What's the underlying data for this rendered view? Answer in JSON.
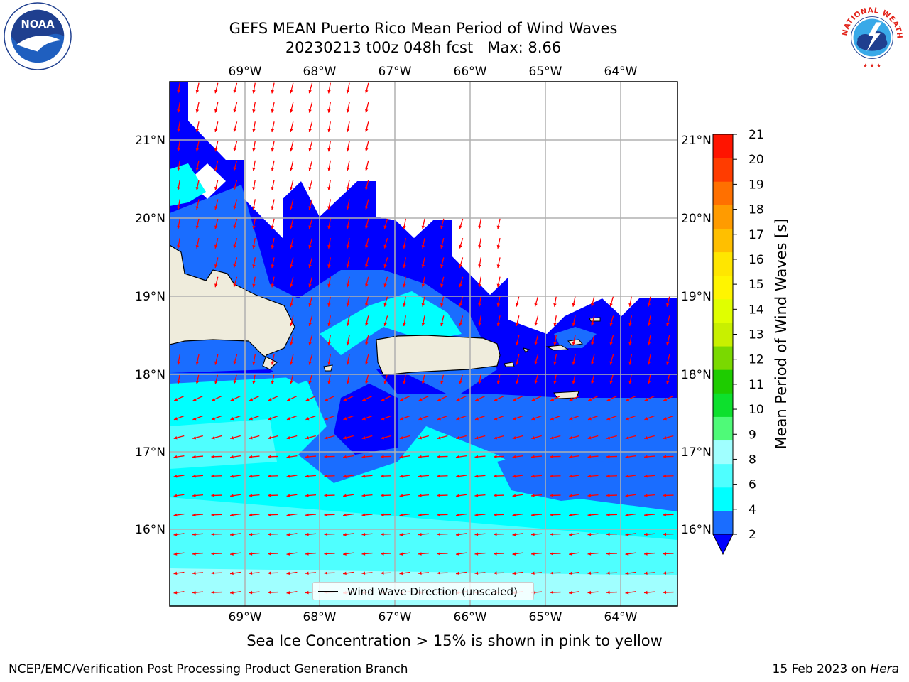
{
  "title": {
    "line1": "GEFS MEAN Puerto Rico Mean Period of Wind Waves",
    "line2": "20230213 t00z 048h fcst",
    "max_label": "Max: 8.66"
  },
  "logos": {
    "left": "noaa-logo",
    "left_text": "NOAA",
    "right": "national-weather-service-logo",
    "right_text": "NATIONAL WEATHER SERVICE"
  },
  "map": {
    "lon_ticks": [
      "69°W",
      "68°W",
      "67°W",
      "66°W",
      "65°W",
      "64°W"
    ],
    "lat_ticks": [
      "21°N",
      "20°N",
      "19°N",
      "18°N",
      "17°N",
      "16°N"
    ],
    "legend_label": "Wind Wave Direction (unscaled)",
    "land_color": "#efecdc",
    "arrow_color": "#ff0000"
  },
  "colorbar": {
    "label": "Mean Period of Wind Waves [s]",
    "ticks": [
      "2",
      "4",
      "6",
      "8",
      "9",
      "10",
      "11",
      "12",
      "13",
      "14",
      "15",
      "16",
      "17",
      "18",
      "19",
      "20",
      "21"
    ],
    "colors": [
      "#1a6dff",
      "#00ffff",
      "#4fffff",
      "#a0ffff",
      "#4ffa78",
      "#0de02d",
      "#1ecc00",
      "#7ad900",
      "#c8f000",
      "#e0ff00",
      "#fff500",
      "#ffe600",
      "#ffbf00",
      "#ff9b00",
      "#ff7000",
      "#ff3c00",
      "#ff1400"
    ],
    "under_color": "#0000ff"
  },
  "notes": {
    "sea_ice": "Sea Ice Concentration > 15% is shown in pink to yellow"
  },
  "footer": {
    "left": "NCEP/EMC/Verification Post Processing Product Generation Branch",
    "date": "15 Feb 2023",
    "on": "on",
    "machine": "Hera"
  }
}
